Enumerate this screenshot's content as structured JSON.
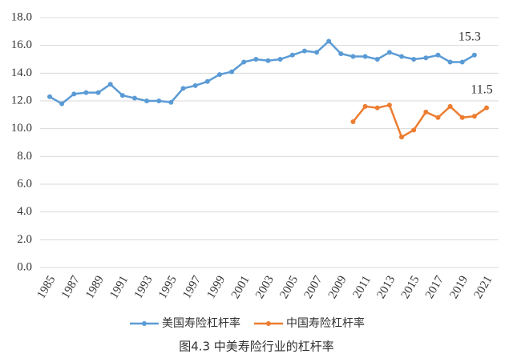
{
  "chart_data": {
    "type": "line",
    "title": "图4.3  中美寿险行业的杠杆率",
    "x": [
      1985,
      1986,
      1987,
      1988,
      1989,
      1990,
      1991,
      1992,
      1993,
      1994,
      1995,
      1996,
      1997,
      1998,
      1999,
      2000,
      2001,
      2002,
      2003,
      2004,
      2005,
      2006,
      2007,
      2008,
      2009,
      2010,
      2011,
      2012,
      2013,
      2014,
      2015,
      2016,
      2017,
      2018,
      2019,
      2020,
      2021
    ],
    "xlim": [
      1985,
      2021
    ],
    "xticks": [
      1985,
      1987,
      1989,
      1991,
      1993,
      1995,
      1997,
      1999,
      2001,
      2003,
      2005,
      2007,
      2009,
      2011,
      2013,
      2015,
      2017,
      2019,
      2021
    ],
    "ylim": [
      0,
      18
    ],
    "yticks": [
      {
        "value": 0,
        "label": "0.0"
      },
      {
        "value": 2,
        "label": "2.0"
      },
      {
        "value": 4,
        "label": "4.0"
      },
      {
        "value": 6,
        "label": "6.0"
      },
      {
        "value": 8,
        "label": "8.0"
      },
      {
        "value": 10,
        "label": "10.0"
      },
      {
        "value": 12,
        "label": "12.0"
      },
      {
        "value": 14,
        "label": "14.0"
      },
      {
        "value": 16,
        "label": "16.0"
      },
      {
        "value": 18,
        "label": "18.0"
      }
    ],
    "grid": true,
    "legend": "bottom",
    "series": [
      {
        "name": "美国寿险杠杆率",
        "color": "#5b9bd5",
        "values": [
          12.3,
          11.8,
          12.5,
          12.6,
          12.6,
          13.2,
          12.4,
          12.2,
          12.0,
          12.0,
          11.9,
          12.9,
          13.1,
          13.4,
          13.9,
          14.1,
          14.8,
          15.0,
          14.9,
          15.0,
          15.3,
          15.6,
          15.5,
          16.3,
          15.4,
          15.2,
          15.2,
          15.0,
          15.5,
          15.2,
          15.0,
          15.1,
          15.3,
          14.8,
          14.8,
          15.3,
          null
        ]
      },
      {
        "name": "中国寿险杠杆率",
        "color": "#ed7d31",
        "values": [
          null,
          null,
          null,
          null,
          null,
          null,
          null,
          null,
          null,
          null,
          null,
          null,
          null,
          null,
          null,
          null,
          null,
          null,
          null,
          null,
          null,
          null,
          null,
          null,
          null,
          10.5,
          11.6,
          11.5,
          11.7,
          9.4,
          9.9,
          11.2,
          10.8,
          11.6,
          10.8,
          10.9,
          11.5
        ]
      }
    ],
    "annotations": [
      "15.3",
      "11.5"
    ]
  }
}
